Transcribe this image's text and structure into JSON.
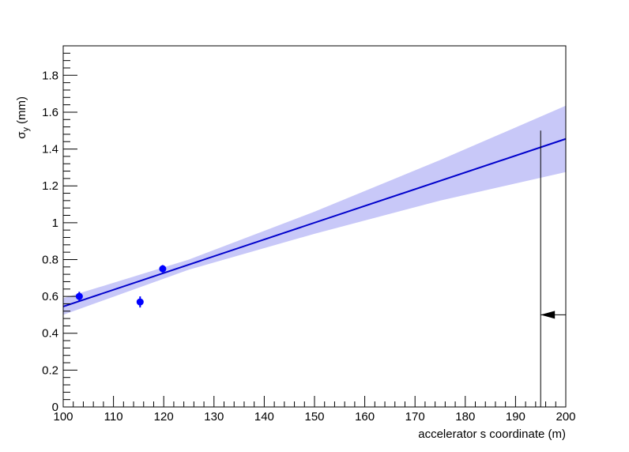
{
  "chart_data": {
    "type": "scatter",
    "xlabel": "accelerator s coordinate (m)",
    "ylabel": {
      "symbol": "σ",
      "subscript": "y",
      "unit": "(mm)"
    },
    "xlim": [
      100,
      200
    ],
    "ylim": [
      0,
      1.96
    ],
    "xticks": [
      100,
      110,
      120,
      130,
      140,
      150,
      160,
      170,
      180,
      190,
      200
    ],
    "yticks": [
      0,
      0.2,
      0.4,
      0.6,
      0.8,
      1,
      1.2,
      1.4,
      1.6,
      1.8
    ],
    "series": [
      {
        "color": "#0000ff",
        "x": [
          103.2,
          115.3,
          119.8
        ],
        "values": [
          0.6,
          0.57,
          0.75
        ],
        "errors": [
          0.025,
          0.03,
          0.02
        ]
      }
    ],
    "fit": {
      "color": "#0000cc",
      "x": [
        100,
        200
      ],
      "values": [
        0.545,
        1.455
      ]
    },
    "band": {
      "color": "#c8c8f8",
      "x": [
        100,
        125,
        150,
        175,
        200
      ],
      "lower": [
        0.5,
        0.745,
        0.94,
        1.12,
        1.275
      ],
      "upper": [
        0.59,
        0.8,
        1.06,
        1.34,
        1.635
      ]
    },
    "cut": {
      "x": 195,
      "ymax": 1.5,
      "arrow_y": 0.5,
      "arrow_from": 200
    }
  }
}
